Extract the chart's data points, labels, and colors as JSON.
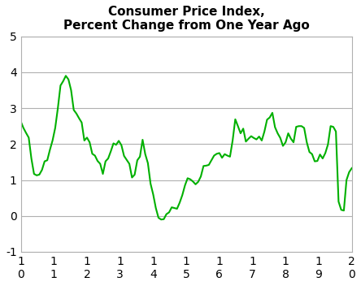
{
  "title": "Consumer Price Index,\nPercent Change from One Year Ago",
  "line_color": "#00b000",
  "background_color": "#ffffff",
  "grid_color": "#b0b0b0",
  "ylim": [
    -1,
    5
  ],
  "yticks": [
    -1,
    0,
    1,
    2,
    3,
    4,
    5
  ],
  "x_tick_labels": [
    "1\n0",
    "1\n1",
    "1\n2",
    "1\n3",
    "1\n4",
    "1\n5",
    "1\n6",
    "1\n7",
    "1\n8",
    "1\n9",
    "2\n0"
  ],
  "values": [
    2.63,
    2.45,
    2.31,
    2.18,
    1.6,
    1.17,
    1.13,
    1.15,
    1.28,
    1.52,
    1.55,
    1.84,
    2.1,
    2.45,
    3.0,
    3.63,
    3.75,
    3.9,
    3.8,
    3.5,
    2.95,
    2.85,
    2.72,
    2.6,
    2.1,
    2.18,
    2.05,
    1.73,
    1.68,
    1.53,
    1.45,
    1.17,
    1.52,
    1.6,
    1.8,
    2.02,
    1.98,
    2.09,
    1.97,
    1.67,
    1.56,
    1.45,
    1.07,
    1.15,
    1.55,
    1.65,
    2.12,
    1.72,
    1.47,
    0.9,
    0.6,
    0.22,
    -0.05,
    -0.1,
    -0.09,
    0.05,
    0.1,
    0.24,
    0.22,
    0.2,
    0.37,
    0.58,
    0.85,
    1.05,
    1.02,
    0.96,
    0.88,
    0.95,
    1.1,
    1.39,
    1.4,
    1.42,
    1.55,
    1.68,
    1.73,
    1.75,
    1.62,
    1.72,
    1.68,
    1.65,
    2.1,
    2.69,
    2.5,
    2.3,
    2.43,
    2.07,
    2.15,
    2.22,
    2.17,
    2.13,
    2.21,
    2.1,
    2.35,
    2.68,
    2.74,
    2.87,
    2.47,
    2.3,
    2.17,
    1.95,
    2.05,
    2.3,
    2.15,
    2.05,
    2.48,
    2.5,
    2.5,
    2.45,
    2.05,
    1.78,
    1.72,
    1.52,
    1.53,
    1.71,
    1.6,
    1.75,
    1.99,
    2.5,
    2.48,
    2.35,
    0.4,
    0.17,
    0.15,
    1.0,
    1.22,
    1.33
  ]
}
